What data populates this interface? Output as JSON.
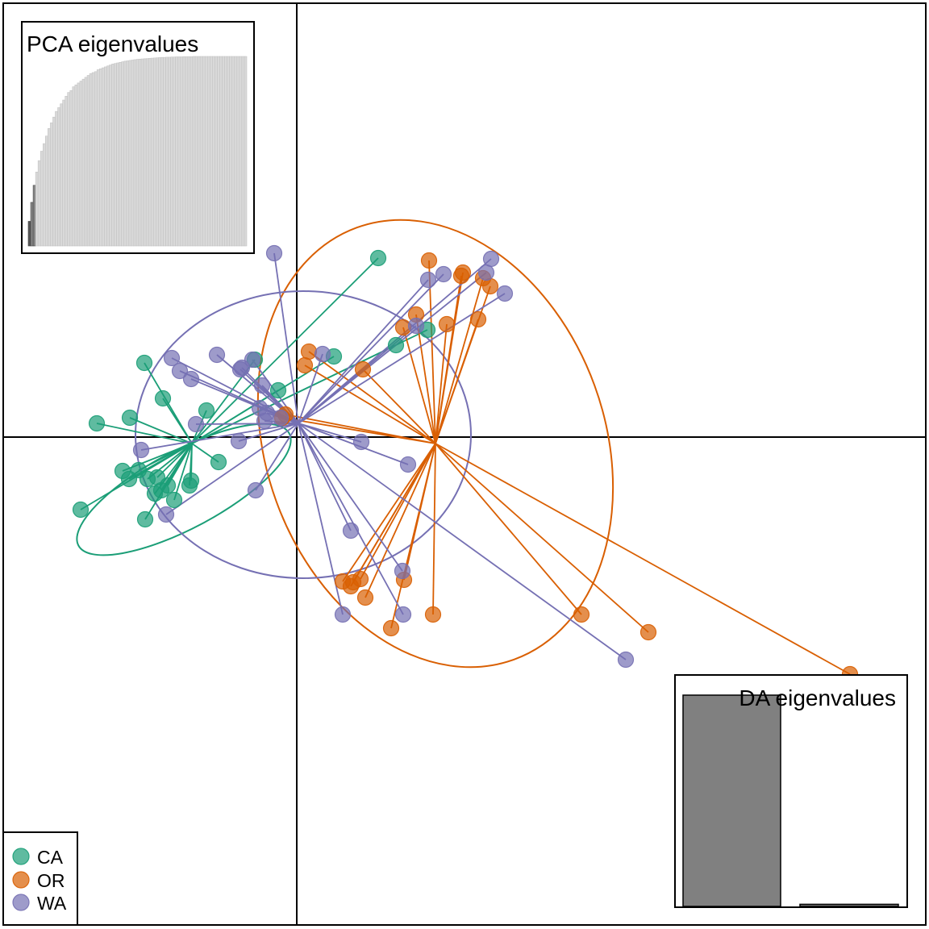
{
  "chart_data": {
    "type": "scatter",
    "title": "",
    "xlabel": "",
    "ylabel": "",
    "xlim": [
      -365,
      785
    ],
    "ylim": [
      -605,
      538
    ],
    "grid": false,
    "legend_position": "bottom-left",
    "colors": {
      "CA": "#1b9e77",
      "OR": "#d95f02",
      "WA": "#7570b3"
    },
    "series": [
      {
        "name": "CA",
        "centroid": [
          -130,
          -8
        ],
        "ellipse": {
          "cx": -140,
          "cy": -65,
          "rx": 148,
          "ry": 48,
          "angle_deg": -28
        },
        "points": [
          [
            101,
            222
          ],
          [
            -189,
            92
          ],
          [
            -166,
            48
          ],
          [
            -248,
            17
          ],
          [
            -207,
            24
          ],
          [
            -112,
            33
          ],
          [
            -52,
            96
          ],
          [
            -23,
            58
          ],
          [
            46,
            100
          ],
          [
            123,
            114
          ],
          [
            162,
            133
          ],
          [
            -196,
            -41
          ],
          [
            -216,
            -42
          ],
          [
            -208,
            -52
          ],
          [
            -185,
            -52
          ],
          [
            -176,
            -70
          ],
          [
            -160,
            -60
          ],
          [
            -131,
            -54
          ],
          [
            -133,
            -60
          ],
          [
            -97,
            -31
          ],
          [
            -173,
            -50
          ],
          [
            -168,
            -66
          ],
          [
            -152,
            -78
          ],
          [
            -268,
            -90
          ],
          [
            -188,
            -102
          ]
        ]
      },
      {
        "name": "OR",
        "centroid": [
          172,
          -8
        ],
        "ellipse": {
          "cx": 172,
          "cy": -8,
          "rx": 210,
          "ry": 285,
          "angle_deg": -20
        },
        "points": [
          [
            164,
            219
          ],
          [
            206,
            204
          ],
          [
            204,
            200
          ],
          [
            231,
            197
          ],
          [
            240,
            187
          ],
          [
            148,
            152
          ],
          [
            132,
            136
          ],
          [
            186,
            140
          ],
          [
            225,
            146
          ],
          [
            15,
            106
          ],
          [
            10,
            89
          ],
          [
            82,
            84
          ],
          [
            -14,
            28
          ],
          [
            -18,
            24
          ],
          [
            79,
            -176
          ],
          [
            70,
            -180
          ],
          [
            57,
            -179
          ],
          [
            67,
            -185
          ],
          [
            133,
            -177
          ],
          [
            85,
            -199
          ],
          [
            169,
            -220
          ],
          [
            117,
            -237
          ],
          [
            353,
            -220
          ],
          [
            436,
            -242
          ],
          [
            686,
            -294
          ]
        ]
      },
      {
        "name": "WA",
        "centroid": [
          2,
          17
        ],
        "ellipse": {
          "cx": 8,
          "cy": 3,
          "rx": 208,
          "ry": 178,
          "angle_deg": 0
        },
        "points": [
          [
            -28,
            228
          ],
          [
            241,
            221
          ],
          [
            235,
            204
          ],
          [
            182,
            202
          ],
          [
            163,
            195
          ],
          [
            258,
            178
          ],
          [
            148,
            138
          ],
          [
            -55,
            96
          ],
          [
            -99,
            102
          ],
          [
            -155,
            98
          ],
          [
            -145,
            82
          ],
          [
            -131,
            72
          ],
          [
            -70,
            84
          ],
          [
            -68,
            86
          ],
          [
            32,
            103
          ],
          [
            -43,
            64
          ],
          [
            -46,
            36
          ],
          [
            -40,
            20
          ],
          [
            -37,
            30
          ],
          [
            -20,
            24
          ],
          [
            -125,
            16
          ],
          [
            -72,
            -5
          ],
          [
            -193,
            -16
          ],
          [
            80,
            -6
          ],
          [
            138,
            -34
          ],
          [
            -51,
            -66
          ],
          [
            -162,
            -96
          ],
          [
            67,
            -116
          ],
          [
            131,
            -166
          ],
          [
            57,
            -220
          ],
          [
            132,
            -220
          ],
          [
            408,
            -276
          ]
        ]
      }
    ],
    "insets": [
      {
        "title": "PCA eigenvalues",
        "type": "bar",
        "description_counts": {
          "bars": 89,
          "retained": 3
        },
        "values_relative": [
          0.13,
          0.23,
          0.32,
          0.39,
          0.45,
          0.5,
          0.54,
          0.58,
          0.62,
          0.65,
          0.68,
          0.71,
          0.73,
          0.75,
          0.77,
          0.79,
          0.81,
          0.82,
          0.84,
          0.85,
          0.86,
          0.87,
          0.88,
          0.89,
          0.9,
          0.91,
          0.915,
          0.92,
          0.93,
          0.935,
          0.94,
          0.945,
          0.95,
          0.955,
          0.96,
          0.963,
          0.966,
          0.969,
          0.972,
          0.975,
          0.977,
          0.979,
          0.981,
          0.983,
          0.985,
          0.986,
          0.987,
          0.988,
          0.989,
          0.99,
          0.991,
          0.992,
          0.993,
          0.994,
          0.995,
          0.995,
          0.996,
          0.996,
          0.997,
          0.997,
          0.998,
          0.998,
          0.998,
          0.999,
          0.999,
          0.999,
          0.999,
          1,
          1,
          1,
          1,
          1,
          1,
          1,
          1,
          1,
          1,
          1,
          1,
          1,
          1,
          1,
          1,
          1,
          1,
          1,
          1,
          1,
          1
        ]
      },
      {
        "title": "DA eigenvalues",
        "type": "bar",
        "values_relative": [
          1.0,
          0.01
        ]
      }
    ],
    "legend": [
      "CA",
      "OR",
      "WA"
    ]
  }
}
